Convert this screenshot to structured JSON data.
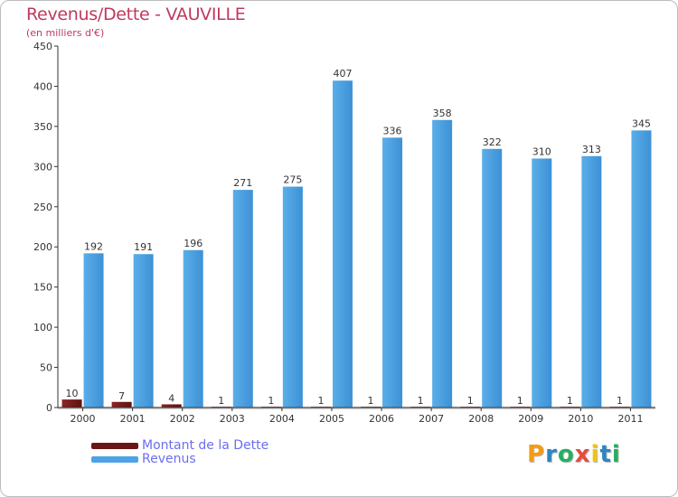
{
  "chart_data": {
    "type": "bar",
    "title": "Revenus/Dette - VAUVILLE",
    "subtitle": "(en milliers d'€)",
    "categories": [
      "2000",
      "2001",
      "2002",
      "2003",
      "2004",
      "2005",
      "2006",
      "2007",
      "2008",
      "2009",
      "2010",
      "2011"
    ],
    "series": [
      {
        "name": "Montant de la Dette",
        "color": "#7a1c1c",
        "values": [
          10,
          7,
          4,
          1,
          1,
          1,
          1,
          1,
          1,
          1,
          1,
          1
        ]
      },
      {
        "name": "Revenus",
        "color": "#4da3e5",
        "values": [
          192,
          191,
          196,
          271,
          275,
          407,
          336,
          358,
          322,
          310,
          313,
          345
        ]
      }
    ],
    "ylim": [
      0,
      450
    ],
    "yticks": [
      0,
      50,
      100,
      150,
      200,
      250,
      300,
      350,
      400,
      450
    ],
    "xlabel": "",
    "ylabel": "",
    "grid": false,
    "legend": "bottom-left"
  },
  "legend": {
    "debt_label": "Montant de la Dette",
    "revenue_label": "Revenus"
  },
  "brand": {
    "letters": [
      "P",
      "r",
      "o",
      "x",
      "i",
      "t",
      "i"
    ],
    "colors": [
      "#f39c12",
      "#2e86c1",
      "#27ae60",
      "#e74c3c",
      "#f1c40f",
      "#2e86c1",
      "#27ae60"
    ]
  }
}
